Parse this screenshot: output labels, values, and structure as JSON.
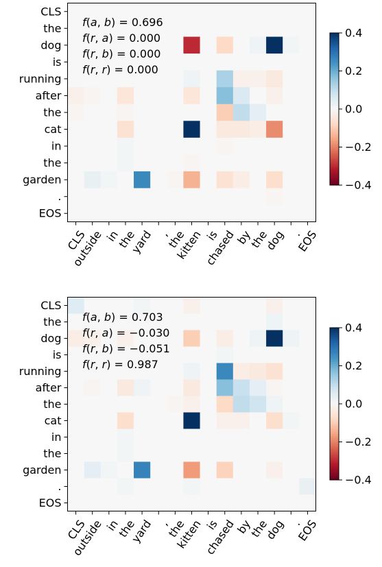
{
  "chart_data": [
    {
      "type": "heatmap",
      "rows": [
        "CLS",
        "the",
        "dog",
        "is",
        "running",
        "after",
        "the",
        "cat",
        "in",
        "the",
        "garden",
        ".",
        "EOS"
      ],
      "cols": [
        "CLS",
        "outside",
        "in",
        "the",
        "yard",
        ",",
        "the",
        "kitten",
        "is",
        "chased",
        "by",
        "the",
        "dog",
        ".",
        "EOS"
      ],
      "annotations": [
        "f(a,b) = 0.696",
        "f(r,a) = 0.000",
        "f(r,b) = 0.000",
        "f(r,r) = 0.000"
      ],
      "colorbar": {
        "min": -0.4,
        "max": 0.4,
        "ticks": [
          "0.4",
          "0.2",
          "0.0",
          "−0.2",
          "−0.4"
        ],
        "colormap": "RdBu"
      },
      "values": [
        [
          0,
          0,
          0,
          0,
          0,
          0,
          0,
          0,
          0,
          0,
          0,
          0,
          0,
          0,
          0
        ],
        [
          0,
          0,
          0,
          0,
          0,
          0,
          0,
          0,
          0,
          0,
          0,
          0,
          0,
          0,
          0
        ],
        [
          0,
          0,
          0,
          0,
          0,
          0,
          0,
          -0.3,
          0,
          -0.08,
          0,
          0.02,
          0.4,
          0.01,
          0
        ],
        [
          0,
          0,
          0,
          0,
          0,
          0,
          0,
          0,
          0,
          0,
          0,
          0,
          0,
          0,
          0
        ],
        [
          0,
          0,
          0,
          0,
          0,
          0,
          0,
          0.02,
          0,
          0.13,
          -0.02,
          -0.02,
          -0.04,
          0,
          0
        ],
        [
          -0.02,
          -0.01,
          0,
          -0.05,
          0,
          0,
          0,
          -0.05,
          0,
          0.17,
          0.06,
          0,
          -0.02,
          0,
          0
        ],
        [
          -0.01,
          0,
          0,
          -0.01,
          0,
          0,
          0,
          0,
          0,
          -0.1,
          0.1,
          0.04,
          0,
          0,
          0
        ],
        [
          0,
          0,
          0,
          -0.06,
          0,
          0,
          0,
          0.4,
          0,
          -0.04,
          -0.04,
          -0.03,
          -0.19,
          0,
          0
        ],
        [
          0,
          0,
          0,
          0.01,
          0,
          0,
          0,
          0,
          0,
          -0.01,
          0,
          0,
          0,
          0,
          0
        ],
        [
          0,
          0,
          0,
          0.01,
          0,
          0,
          0,
          -0.01,
          0,
          0,
          0,
          0,
          0,
          0,
          0
        ],
        [
          0,
          0.03,
          0.01,
          0,
          0.26,
          0,
          -0.01,
          -0.14,
          0,
          -0.06,
          -0.03,
          0,
          -0.07,
          0,
          0
        ],
        [
          0,
          0,
          0,
          0,
          0,
          0,
          0,
          0,
          0,
          0,
          0,
          0,
          -0.01,
          0,
          0
        ],
        [
          0,
          0,
          0,
          0,
          0,
          0,
          0,
          0,
          0,
          0,
          0,
          0,
          0,
          0,
          0
        ]
      ]
    },
    {
      "type": "heatmap",
      "rows": [
        "CLS",
        "the",
        "dog",
        "is",
        "running",
        "after",
        "the",
        "cat",
        "in",
        "the",
        "garden",
        ".",
        "EOS"
      ],
      "cols": [
        "CLS",
        "outside",
        "in",
        "the",
        "yard",
        ",",
        "the",
        "kitten",
        "is",
        "chased",
        "by",
        "the",
        "dog",
        ".",
        "EOS"
      ],
      "annotations": [
        "f(a,b) = 0.703",
        "f(r,a) = −0.030",
        "f(r,b) = −0.051",
        "f(r,r) = 0.987"
      ],
      "colorbar": {
        "min": -0.4,
        "max": 0.4,
        "ticks": [
          "0.4",
          "0.2",
          "0.0",
          "−0.2",
          "−0.4"
        ],
        "colormap": "RdBu"
      },
      "values": [
        [
          0.05,
          0,
          0,
          0,
          0.01,
          0,
          0,
          -0.02,
          0,
          0,
          0,
          0,
          -0.02,
          0,
          0
        ],
        [
          0,
          0,
          0,
          0,
          0,
          0,
          0,
          0,
          0,
          0,
          0,
          0,
          0.02,
          0,
          0
        ],
        [
          -0.03,
          -0.02,
          0,
          -0.02,
          0,
          0,
          0,
          -0.1,
          0,
          -0.03,
          0,
          0.02,
          0.4,
          0.02,
          0
        ],
        [
          0,
          0,
          0,
          0,
          0,
          0,
          0,
          0,
          0,
          0.01,
          0,
          0,
          0,
          0,
          0
        ],
        [
          0,
          0,
          0,
          0,
          0,
          0,
          0,
          0.02,
          0,
          0.26,
          -0.03,
          -0.04,
          -0.06,
          0,
          0
        ],
        [
          0,
          -0.01,
          0,
          -0.04,
          0.02,
          0,
          0,
          -0.04,
          0,
          0.17,
          0.09,
          0.04,
          -0.01,
          0,
          0
        ],
        [
          0,
          0,
          0,
          0,
          0,
          0,
          -0.01,
          -0.02,
          0,
          -0.08,
          0.1,
          0.08,
          0.02,
          0,
          0
        ],
        [
          0,
          0,
          0,
          -0.07,
          0,
          0,
          0,
          0.4,
          0,
          -0.02,
          -0.02,
          0,
          -0.07,
          0.01,
          0
        ],
        [
          0,
          0,
          0,
          0.01,
          0,
          0,
          0,
          0,
          0,
          0,
          0,
          0,
          0,
          0,
          0
        ],
        [
          0,
          0,
          0,
          0.01,
          0,
          0,
          0,
          0,
          0,
          0,
          0,
          0,
          0,
          0,
          0
        ],
        [
          0,
          0.04,
          0.01,
          0,
          0.27,
          0,
          0,
          -0.17,
          0,
          -0.09,
          0,
          0,
          -0.02,
          0,
          0
        ],
        [
          0,
          0,
          0,
          0.01,
          0,
          0,
          0,
          0.01,
          0,
          0,
          0,
          0,
          0,
          0,
          0.03
        ],
        [
          0,
          0,
          0,
          0,
          0,
          0,
          0,
          0,
          0,
          0,
          0,
          0,
          0,
          0,
          0
        ]
      ]
    }
  ]
}
